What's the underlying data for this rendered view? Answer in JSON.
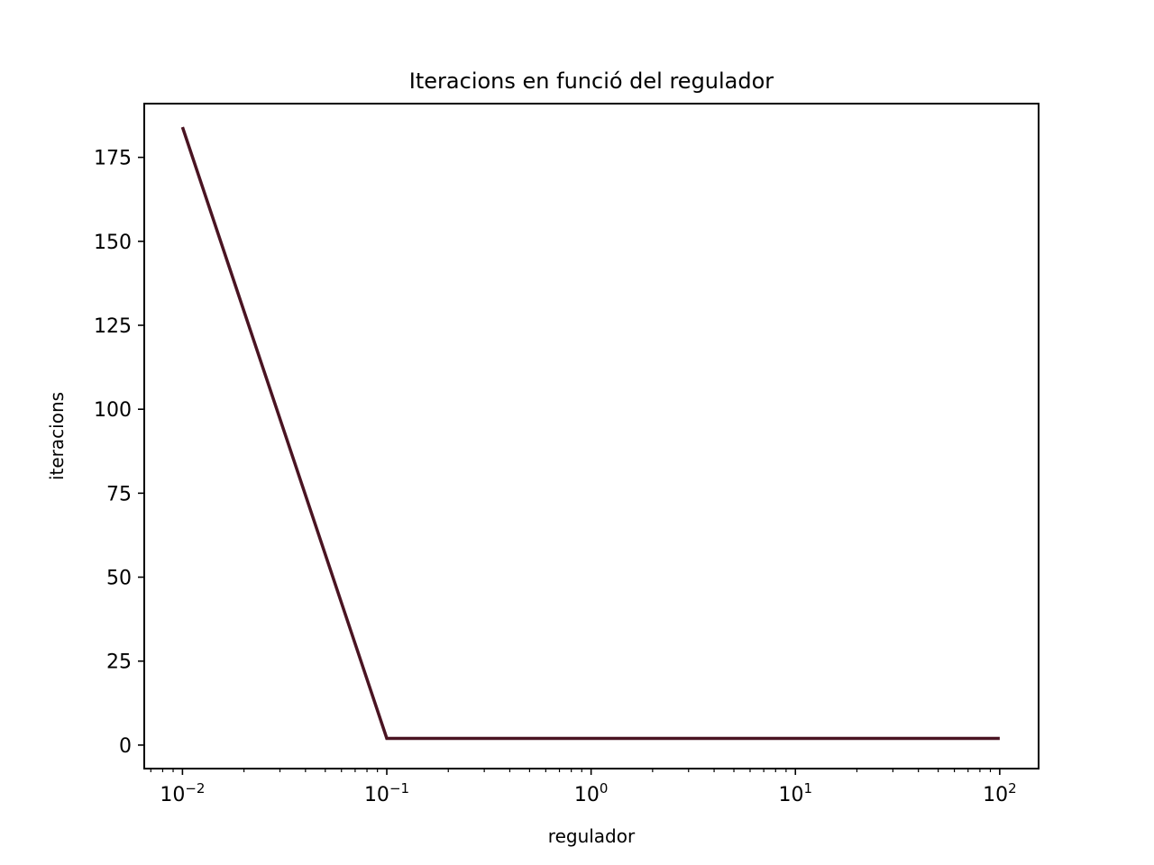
{
  "chart_data": {
    "type": "line",
    "title": "Iteracions en funció del regulador",
    "xlabel": "regulador",
    "ylabel": "iteracions",
    "xscale": "log",
    "xlim": [
      0.0065,
      155
    ],
    "ylim": [
      -7,
      191
    ],
    "x_ticks": [
      {
        "value": 0.01,
        "base": "10",
        "exp": "−2"
      },
      {
        "value": 0.1,
        "base": "10",
        "exp": "−1"
      },
      {
        "value": 1,
        "base": "10",
        "exp": "0"
      },
      {
        "value": 10,
        "base": "10",
        "exp": "1"
      },
      {
        "value": 100,
        "base": "10",
        "exp": "2"
      }
    ],
    "y_ticks": [
      0,
      25,
      50,
      75,
      100,
      125,
      150,
      175
    ],
    "grid": false,
    "legend": "none",
    "series": [
      {
        "color": "#4a1422",
        "x": [
          0.01,
          0.1,
          1,
          10,
          100
        ],
        "y": [
          184,
          2,
          2,
          2,
          2
        ]
      }
    ]
  }
}
